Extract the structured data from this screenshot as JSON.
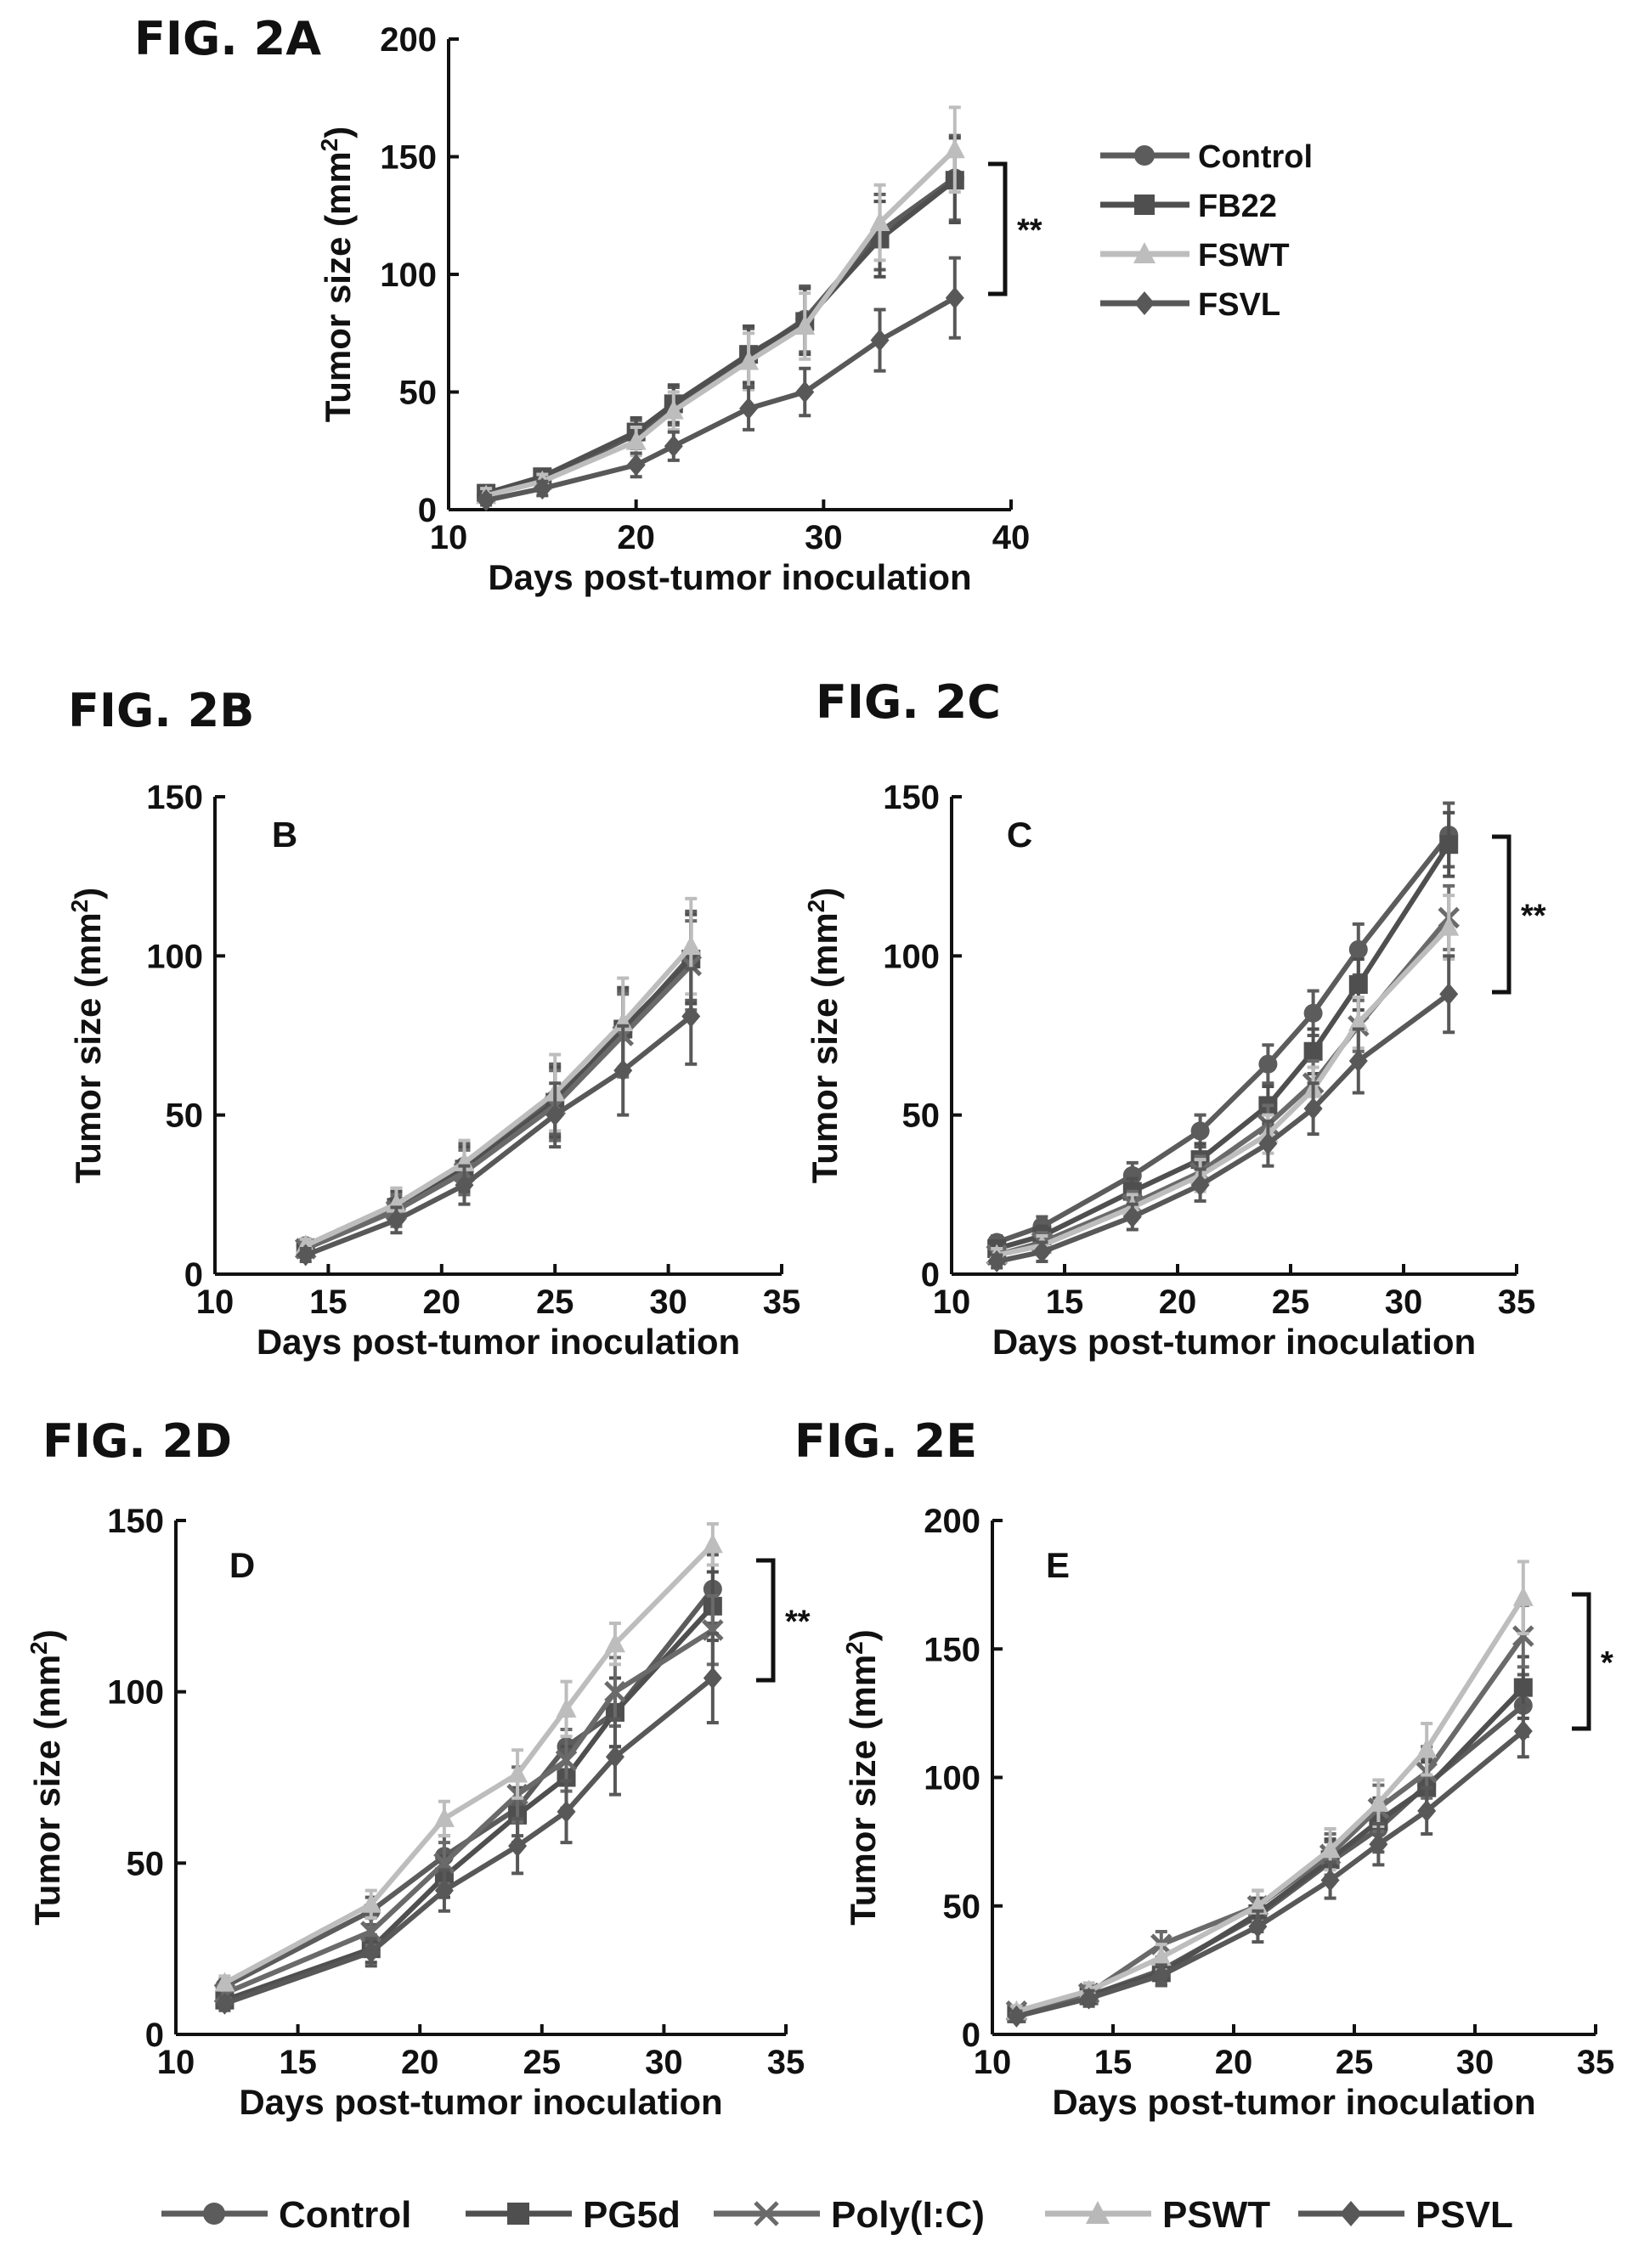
{
  "figures": {
    "fig_2a": "FIG. 2A",
    "fig_2b": "FIG. 2B",
    "fig_2c": "FIG. 2C",
    "fig_2d": "FIG. 2D",
    "fig_2e": "FIG. 2E"
  },
  "bottom_legend": {
    "entries": [
      {
        "name": "Control",
        "color": "#5c5c5c",
        "marker": "circle"
      },
      {
        "name": "PG5d",
        "color": "#4f4f4f",
        "marker": "square"
      },
      {
        "name": "Poly(I:C)",
        "color": "#6a6a6a",
        "marker": "x"
      },
      {
        "name": "PSWT",
        "color": "#b8b8b8",
        "marker": "triangle"
      },
      {
        "name": "PSVL",
        "color": "#585858",
        "marker": "diamond"
      }
    ]
  },
  "chart_data": [
    {
      "id": "A",
      "type": "line",
      "panel_letter": "",
      "xlabel": "Days post-tumor inoculation",
      "ylabel": "Tumor size (mm",
      "ylabel_sup": "2",
      "ylabel_end": ")",
      "xlim": [
        10,
        40
      ],
      "ylim": [
        0,
        200
      ],
      "xticks": [
        10,
        20,
        30,
        40
      ],
      "yticks": [
        0,
        50,
        100,
        150,
        200
      ],
      "legend_position": "top-right",
      "legend": [
        "Control",
        "FB22",
        "FSWT",
        "FSVL"
      ],
      "significance": "**",
      "series": [
        {
          "name": "Control",
          "color": "#5c5c5c",
          "marker": "circle",
          "x": [
            12,
            15,
            20,
            22,
            26,
            29,
            33,
            37
          ],
          "y": [
            6,
            13,
            32,
            44,
            65,
            81,
            118,
            141
          ],
          "err": [
            3,
            3,
            6,
            8,
            12,
            14,
            16,
            18
          ]
        },
        {
          "name": "FB22",
          "color": "#4f4f4f",
          "marker": "square",
          "x": [
            12,
            15,
            20,
            22,
            26,
            29,
            33,
            37
          ],
          "y": [
            7,
            14,
            33,
            45,
            66,
            80,
            115,
            140
          ],
          "err": [
            3,
            3,
            6,
            8,
            12,
            14,
            16,
            18
          ]
        },
        {
          "name": "FSWT",
          "color": "#bdbdbd",
          "marker": "triangle",
          "x": [
            12,
            15,
            20,
            22,
            26,
            29,
            33,
            37
          ],
          "y": [
            6,
            12,
            29,
            42,
            63,
            78,
            122,
            153
          ],
          "err": [
            3,
            3,
            6,
            8,
            12,
            14,
            16,
            18
          ]
        },
        {
          "name": "FSVL",
          "color": "#585858",
          "marker": "diamond",
          "x": [
            12,
            15,
            20,
            22,
            26,
            29,
            33,
            37
          ],
          "y": [
            4,
            9,
            19,
            27,
            43,
            50,
            72,
            90
          ],
          "err": [
            2,
            3,
            5,
            6,
            9,
            10,
            13,
            17
          ]
        }
      ]
    },
    {
      "id": "B",
      "type": "line",
      "panel_letter": "B",
      "xlabel": "Days post-tumor inoculation",
      "ylabel": "Tumor size (mm",
      "ylabel_sup": "2",
      "ylabel_end": ")",
      "xlim": [
        10,
        35
      ],
      "ylim": [
        0,
        150
      ],
      "xticks": [
        10,
        15,
        20,
        25,
        30,
        35
      ],
      "yticks": [
        0,
        50,
        100,
        150
      ],
      "significance": "",
      "series": [
        {
          "name": "Control",
          "color": "#5c5c5c",
          "marker": "circle",
          "x": [
            14,
            18,
            21,
            25,
            28,
            31
          ],
          "y": [
            9,
            22,
            34,
            55,
            76,
            100
          ],
          "err": [
            2,
            5,
            7,
            11,
            13,
            14
          ]
        },
        {
          "name": "PG5d",
          "color": "#4f4f4f",
          "marker": "square",
          "x": [
            14,
            18,
            21,
            25,
            28,
            31
          ],
          "y": [
            8,
            21,
            33,
            54,
            77,
            99
          ],
          "err": [
            2,
            5,
            7,
            11,
            13,
            14
          ]
        },
        {
          "name": "Poly(I:C)",
          "color": "#6a6a6a",
          "marker": "x",
          "x": [
            14,
            18,
            21,
            25,
            28,
            31
          ],
          "y": [
            8,
            20,
            32,
            53,
            75,
            97
          ],
          "err": [
            2,
            5,
            7,
            11,
            13,
            14
          ]
        },
        {
          "name": "PSWT",
          "color": "#bdbdbd",
          "marker": "triangle",
          "x": [
            14,
            18,
            21,
            25,
            28,
            31
          ],
          "y": [
            9,
            22,
            35,
            57,
            79,
            103
          ],
          "err": [
            2,
            5,
            7,
            12,
            14,
            15
          ]
        },
        {
          "name": "PSVL",
          "color": "#585858",
          "marker": "diamond",
          "x": [
            14,
            18,
            21,
            25,
            28,
            31
          ],
          "y": [
            6,
            17,
            28,
            50,
            64,
            81
          ],
          "err": [
            2,
            4,
            6,
            10,
            14,
            15
          ]
        }
      ]
    },
    {
      "id": "C",
      "type": "line",
      "panel_letter": "C",
      "xlabel": "Days post-tumor inoculation",
      "ylabel": "Tumor size (mm",
      "ylabel_sup": "2",
      "ylabel_end": ")",
      "xlim": [
        10,
        35
      ],
      "ylim": [
        0,
        150
      ],
      "xticks": [
        10,
        15,
        20,
        25,
        30,
        35
      ],
      "yticks": [
        0,
        50,
        100,
        150
      ],
      "significance": "**",
      "series": [
        {
          "name": "Control",
          "color": "#5c5c5c",
          "marker": "circle",
          "x": [
            12,
            14,
            18,
            21,
            24,
            26,
            28,
            32
          ],
          "y": [
            10,
            15,
            31,
            45,
            66,
            82,
            102,
            138
          ],
          "err": [
            2,
            3,
            4,
            5,
            6,
            7,
            8,
            10
          ]
        },
        {
          "name": "PG5d",
          "color": "#4f4f4f",
          "marker": "square",
          "x": [
            12,
            14,
            18,
            21,
            24,
            26,
            28,
            32
          ],
          "y": [
            8,
            12,
            26,
            36,
            53,
            70,
            91,
            135
          ],
          "err": [
            2,
            3,
            4,
            5,
            6,
            7,
            8,
            10
          ]
        },
        {
          "name": "Poly(I:C)",
          "color": "#6a6a6a",
          "marker": "x",
          "x": [
            12,
            14,
            18,
            21,
            24,
            26,
            28,
            32
          ],
          "y": [
            6,
            10,
            22,
            32,
            47,
            60,
            78,
            112
          ],
          "err": [
            2,
            3,
            4,
            5,
            6,
            7,
            8,
            10
          ]
        },
        {
          "name": "PSWT",
          "color": "#bdbdbd",
          "marker": "triangle",
          "x": [
            12,
            14,
            18,
            21,
            24,
            26,
            28,
            32
          ],
          "y": [
            6,
            9,
            21,
            31,
            44,
            58,
            79,
            109
          ],
          "err": [
            2,
            3,
            4,
            5,
            6,
            7,
            8,
            10
          ]
        },
        {
          "name": "PSVL",
          "color": "#585858",
          "marker": "diamond",
          "x": [
            12,
            14,
            18,
            21,
            24,
            26,
            28,
            32
          ],
          "y": [
            4,
            7,
            18,
            28,
            41,
            52,
            67,
            88
          ],
          "err": [
            2,
            3,
            4,
            5,
            7,
            8,
            10,
            12
          ]
        }
      ]
    },
    {
      "id": "D",
      "type": "line",
      "panel_letter": "D",
      "xlabel": "Days post-tumor inoculation",
      "ylabel": "Tumor size (mm",
      "ylabel_sup": "2",
      "ylabel_end": ")",
      "xlim": [
        10,
        35
      ],
      "ylim": [
        0,
        150
      ],
      "xticks": [
        10,
        15,
        20,
        25,
        30,
        35
      ],
      "yticks": [
        0,
        50,
        100,
        150
      ],
      "significance": "**",
      "series": [
        {
          "name": "Control",
          "color": "#5c5c5c",
          "marker": "circle",
          "x": [
            12,
            18,
            21,
            24,
            26,
            28,
            32
          ],
          "y": [
            14,
            36,
            52,
            66,
            84,
            94,
            130
          ],
          "err": [
            2,
            4,
            6,
            8,
            9,
            10,
            10
          ]
        },
        {
          "name": "PG5d",
          "color": "#4f4f4f",
          "marker": "square",
          "x": [
            12,
            18,
            21,
            24,
            26,
            28,
            32
          ],
          "y": [
            10,
            25,
            46,
            64,
            75,
            94,
            125
          ],
          "err": [
            2,
            4,
            6,
            8,
            9,
            10,
            10
          ]
        },
        {
          "name": "Poly(I:C)",
          "color": "#6a6a6a",
          "marker": "x",
          "x": [
            12,
            18,
            21,
            24,
            26,
            28,
            32
          ],
          "y": [
            12,
            30,
            50,
            70,
            80,
            100,
            118
          ],
          "err": [
            2,
            4,
            6,
            8,
            9,
            10,
            10
          ]
        },
        {
          "name": "PSWT",
          "color": "#bdbdbd",
          "marker": "triangle",
          "x": [
            12,
            18,
            21,
            24,
            26,
            28,
            32
          ],
          "y": [
            15,
            38,
            63,
            76,
            95,
            114,
            143
          ],
          "err": [
            2,
            4,
            5,
            7,
            8,
            6,
            6
          ]
        },
        {
          "name": "PSVL",
          "color": "#585858",
          "marker": "diamond",
          "x": [
            12,
            18,
            21,
            24,
            26,
            28,
            32
          ],
          "y": [
            9,
            24,
            42,
            55,
            65,
            81,
            104
          ],
          "err": [
            2,
            4,
            6,
            8,
            9,
            11,
            13
          ]
        }
      ]
    },
    {
      "id": "E",
      "type": "line",
      "panel_letter": "E",
      "xlabel": "Days post-tumor inoculation",
      "ylabel": "Tumor size (mm",
      "ylabel_sup": "2",
      "ylabel_end": ")",
      "xlim": [
        10,
        35
      ],
      "ylim": [
        0,
        200
      ],
      "xticks": [
        10,
        15,
        20,
        25,
        30,
        35
      ],
      "yticks": [
        0,
        50,
        100,
        150,
        200
      ],
      "significance": "*",
      "series": [
        {
          "name": "Control",
          "color": "#5c5c5c",
          "marker": "circle",
          "x": [
            11,
            14,
            17,
            21,
            24,
            26,
            28,
            32
          ],
          "y": [
            8,
            15,
            25,
            46,
            67,
            80,
            97,
            128
          ],
          "err": [
            2,
            3,
            5,
            6,
            8,
            9,
            10,
            12
          ]
        },
        {
          "name": "PG5d",
          "color": "#4f4f4f",
          "marker": "square",
          "x": [
            11,
            14,
            17,
            21,
            24,
            26,
            28,
            32
          ],
          "y": [
            8,
            15,
            24,
            47,
            68,
            83,
            96,
            135
          ],
          "err": [
            2,
            3,
            5,
            6,
            8,
            9,
            10,
            12
          ]
        },
        {
          "name": "Poly(I:C)",
          "color": "#6a6a6a",
          "marker": "x",
          "x": [
            11,
            14,
            17,
            21,
            24,
            26,
            28,
            32
          ],
          "y": [
            9,
            16,
            35,
            50,
            70,
            88,
            102,
            155
          ],
          "err": [
            2,
            3,
            5,
            6,
            8,
            9,
            10,
            12
          ]
        },
        {
          "name": "PSWT",
          "color": "#bdbdbd",
          "marker": "triangle",
          "x": [
            11,
            14,
            17,
            21,
            24,
            26,
            28,
            32
          ],
          "y": [
            9,
            17,
            30,
            50,
            72,
            90,
            111,
            170
          ],
          "err": [
            2,
            3,
            5,
            6,
            8,
            9,
            10,
            14
          ]
        },
        {
          "name": "PSVL",
          "color": "#585858",
          "marker": "diamond",
          "x": [
            11,
            14,
            17,
            21,
            24,
            26,
            28,
            32
          ],
          "y": [
            7,
            14,
            23,
            42,
            60,
            74,
            87,
            118
          ],
          "err": [
            2,
            3,
            4,
            6,
            7,
            8,
            9,
            10
          ]
        }
      ]
    }
  ]
}
